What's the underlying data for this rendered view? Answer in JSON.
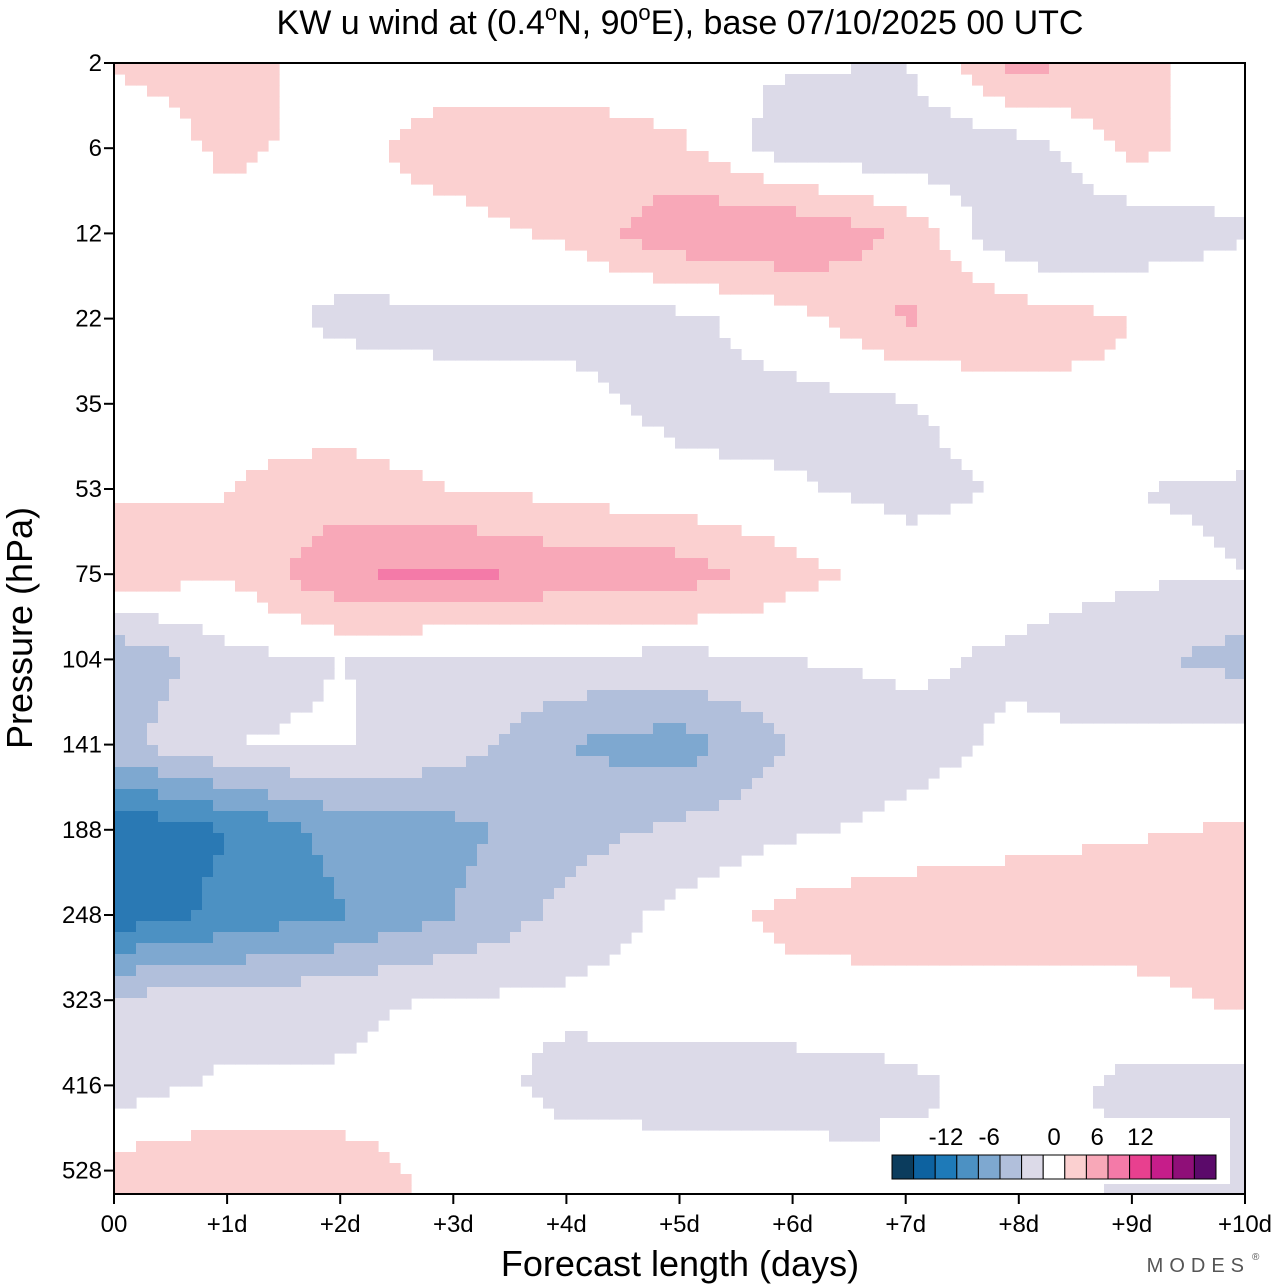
{
  "chart_data": {
    "type": "heatmap",
    "subtype": "filled-contour",
    "title": "KW u wind at (0.4°N, 90°E),  base 07/10/2025  00 UTC",
    "title_parts": {
      "prefix": "KW u wind at (0.4",
      "deg1": "o",
      "mid": "N, 90",
      "deg2": "o",
      "suffix": "E),  base 07/10/2025  00 UTC"
    },
    "xlabel": "Forecast length (days)",
    "ylabel": "Pressure (hPa)",
    "x_ticks": [
      {
        "value": 0,
        "label": "00"
      },
      {
        "value": 1,
        "label": "+1d"
      },
      {
        "value": 2,
        "label": "+2d"
      },
      {
        "value": 3,
        "label": "+3d"
      },
      {
        "value": 4,
        "label": "+4d"
      },
      {
        "value": 5,
        "label": "+5d"
      },
      {
        "value": 6,
        "label": "+6d"
      },
      {
        "value": 7,
        "label": "+7d"
      },
      {
        "value": 8,
        "label": "+8d"
      },
      {
        "value": 9,
        "label": "+9d"
      },
      {
        "value": 10,
        "label": "+10d"
      }
    ],
    "xlim": [
      0,
      10
    ],
    "y_ticks": [
      "2",
      "6",
      "12",
      "22",
      "35",
      "53",
      "75",
      "104",
      "141",
      "188",
      "248",
      "323",
      "416",
      "528"
    ],
    "y_scale": "pressure levels, top to bottom",
    "levels": [
      {
        "lo": 7.5,
        "hi": 8.5,
        "color": "#ffffff"
      },
      {
        "lo": 8.5,
        "hi": 9.5,
        "color": "#fbd0d0"
      },
      {
        "lo": 9.5,
        "hi": 10.5,
        "color": "#f8a8b8"
      },
      {
        "lo": 10.5,
        "hi": 11.5,
        "color": "#f47aa8"
      },
      {
        "lo": 11.5,
        "hi": 99,
        "color": "#e8408f"
      },
      {
        "lo": 6.5,
        "hi": 7.5,
        "color": "#dcdae8"
      },
      {
        "lo": 5.5,
        "hi": 6.5,
        "color": "#b1bfdb"
      },
      {
        "lo": 4.5,
        "hi": 5.5,
        "color": "#7ea8d0"
      },
      {
        "lo": 3.5,
        "hi": 4.5,
        "color": "#4c91c3"
      },
      {
        "lo": 2.5,
        "hi": 3.5,
        "color": "#2a79b4"
      },
      {
        "lo": -99,
        "hi": 2.5,
        "color": "#0d62a0"
      }
    ],
    "field_note": "u wind anomaly (m/s); grid rows follow y_ticks, columns follow forecast days 0..10; value 8 = 0 m/s, each class step = 1.5 m/s",
    "grid": [
      [
        8.6,
        8.9,
        8.0,
        8.0,
        7.8,
        7.6,
        7.6,
        7.5,
        10.0,
        8.8,
        8.0
      ],
      [
        7.8,
        8.7,
        8.2,
        9.0,
        9.3,
        8.7,
        6.9,
        6.8,
        7.0,
        8.8,
        8.0
      ],
      [
        8.0,
        8.1,
        8.0,
        8.1,
        8.7,
        10.3,
        10.5,
        9.2,
        6.5,
        6.8,
        7.4
      ],
      [
        8.0,
        8.0,
        7.3,
        7.4,
        7.3,
        7.2,
        8.1,
        9.6,
        9.1,
        8.5,
        8.5
      ],
      [
        8.0,
        8.0,
        8.0,
        7.6,
        7.7,
        7.3,
        7.2,
        7.4,
        8.2,
        8.3,
        8.0
      ],
      [
        8.3,
        8.5,
        9.0,
        8.5,
        8.2,
        7.7,
        7.6,
        7.2,
        7.6,
        7.5,
        7.4
      ],
      [
        9.3,
        8.5,
        10.4,
        10.7,
        10.2,
        10.1,
        8.8,
        8.0,
        8.0,
        7.7,
        7.5
      ],
      [
        5.5,
        7.2,
        7.5,
        7.3,
        7.3,
        7.2,
        7.5,
        7.7,
        7.3,
        6.7,
        6.1
      ],
      [
        6.2,
        7.5,
        7.6,
        7.0,
        5.5,
        5.0,
        6.5,
        7.1,
        7.7,
        7.7,
        8.0
      ],
      [
        2.5,
        3.5,
        4.9,
        5.2,
        6.1,
        6.7,
        7.3,
        7.8,
        8.2,
        8.4,
        8.6
      ],
      [
        2.8,
        3.8,
        4.4,
        5.5,
        6.8,
        7.8,
        8.9,
        9.2,
        9.1,
        9.2,
        9.3
      ],
      [
        6.8,
        6.9,
        7.3,
        7.6,
        7.7,
        8.0,
        8.0,
        8.0,
        8.1,
        8.1,
        8.7
      ],
      [
        7.0,
        7.7,
        7.6,
        8.0,
        7.2,
        7.0,
        7.1,
        7.3,
        7.9,
        7.3,
        7.0
      ],
      [
        9.0,
        9.3,
        9.2,
        8.0,
        8.0,
        8.0,
        7.8,
        7.6,
        7.9,
        7.4,
        7.2
      ]
    ],
    "colorbar": {
      "colors": [
        "#0b3c5d",
        "#0d62a0",
        "#1e7ab8",
        "#4c91c3",
        "#7ea8d0",
        "#b1bfdb",
        "#dcdae8",
        "#ffffff",
        "#fbd0d0",
        "#f8a8b8",
        "#f47aa8",
        "#e8408f",
        "#c61d8a",
        "#8f0f78",
        "#5b0a6a"
      ],
      "tick_labels": [
        {
          "label": "-12",
          "at_color_index": 2
        },
        {
          "label": "-6",
          "at_color_index": 4
        },
        {
          "label": "0",
          "at_color_index": 7
        },
        {
          "label": "6",
          "at_color_index": 9
        },
        {
          "label": "12",
          "at_color_index": 11
        }
      ]
    }
  },
  "branding": {
    "logo_text": "MODES",
    "mark": "®"
  }
}
